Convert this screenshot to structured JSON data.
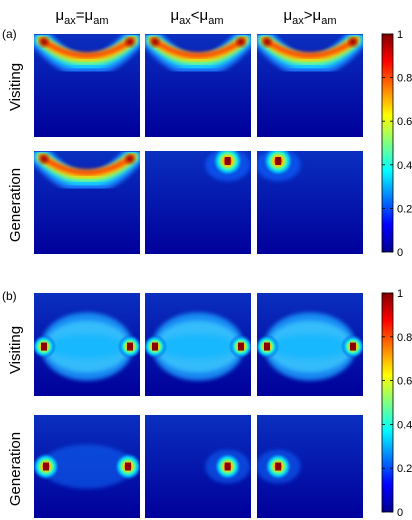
{
  "column_titles": [
    {
      "a": "μ",
      "a_sub": "ax",
      "rel": "=",
      "b": "μ",
      "b_sub": "am"
    },
    {
      "a": "μ",
      "a_sub": "ax",
      "rel": "<",
      "b": "μ",
      "b_sub": "am"
    },
    {
      "a": "μ",
      "a_sub": "ax",
      "rel": ">",
      "b": "μ",
      "b_sub": "am"
    }
  ],
  "chart_data": {
    "type": "heatmap",
    "colormap": "jet",
    "value_range": [
      0,
      1
    ],
    "colorbar_ticks": [
      "0",
      "0.2",
      "0.4",
      "0.6",
      "0.8",
      "1"
    ],
    "panels": [
      {
        "label": "(a)",
        "rows": [
          {
            "label": "Visiting",
            "cells": [
              {
                "shape": "arc",
                "peak_left": 1.0,
                "peak_right": 1.0
              },
              {
                "shape": "arc",
                "peak_left": 1.0,
                "peak_right": 1.0
              },
              {
                "shape": "arc",
                "peak_left": 1.0,
                "peak_right": 1.0
              }
            ]
          },
          {
            "label": "Generation",
            "cells": [
              {
                "shape": "arc",
                "peak_left": 1.0,
                "peak_right": 1.0
              },
              {
                "shape": "spot",
                "side": "right",
                "peak": 1.0
              },
              {
                "shape": "spot",
                "side": "left",
                "peak": 1.0
              }
            ]
          }
        ]
      },
      {
        "label": "(b)",
        "rows": [
          {
            "label": "Visiting",
            "cells": [
              {
                "shape": "banana",
                "peak_left": 1.0,
                "peak_right": 1.0
              },
              {
                "shape": "banana",
                "peak_left": 1.0,
                "peak_right": 1.0
              },
              {
                "shape": "banana",
                "peak_left": 1.0,
                "peak_right": 1.0
              }
            ]
          },
          {
            "label": "Generation",
            "cells": [
              {
                "shape": "two_spots",
                "peak_left": 1.0,
                "peak_right": 1.0
              },
              {
                "shape": "spot",
                "side": "right",
                "peak": 1.0
              },
              {
                "shape": "spot",
                "side": "left",
                "peak": 1.0
              }
            ]
          }
        ]
      }
    ]
  }
}
